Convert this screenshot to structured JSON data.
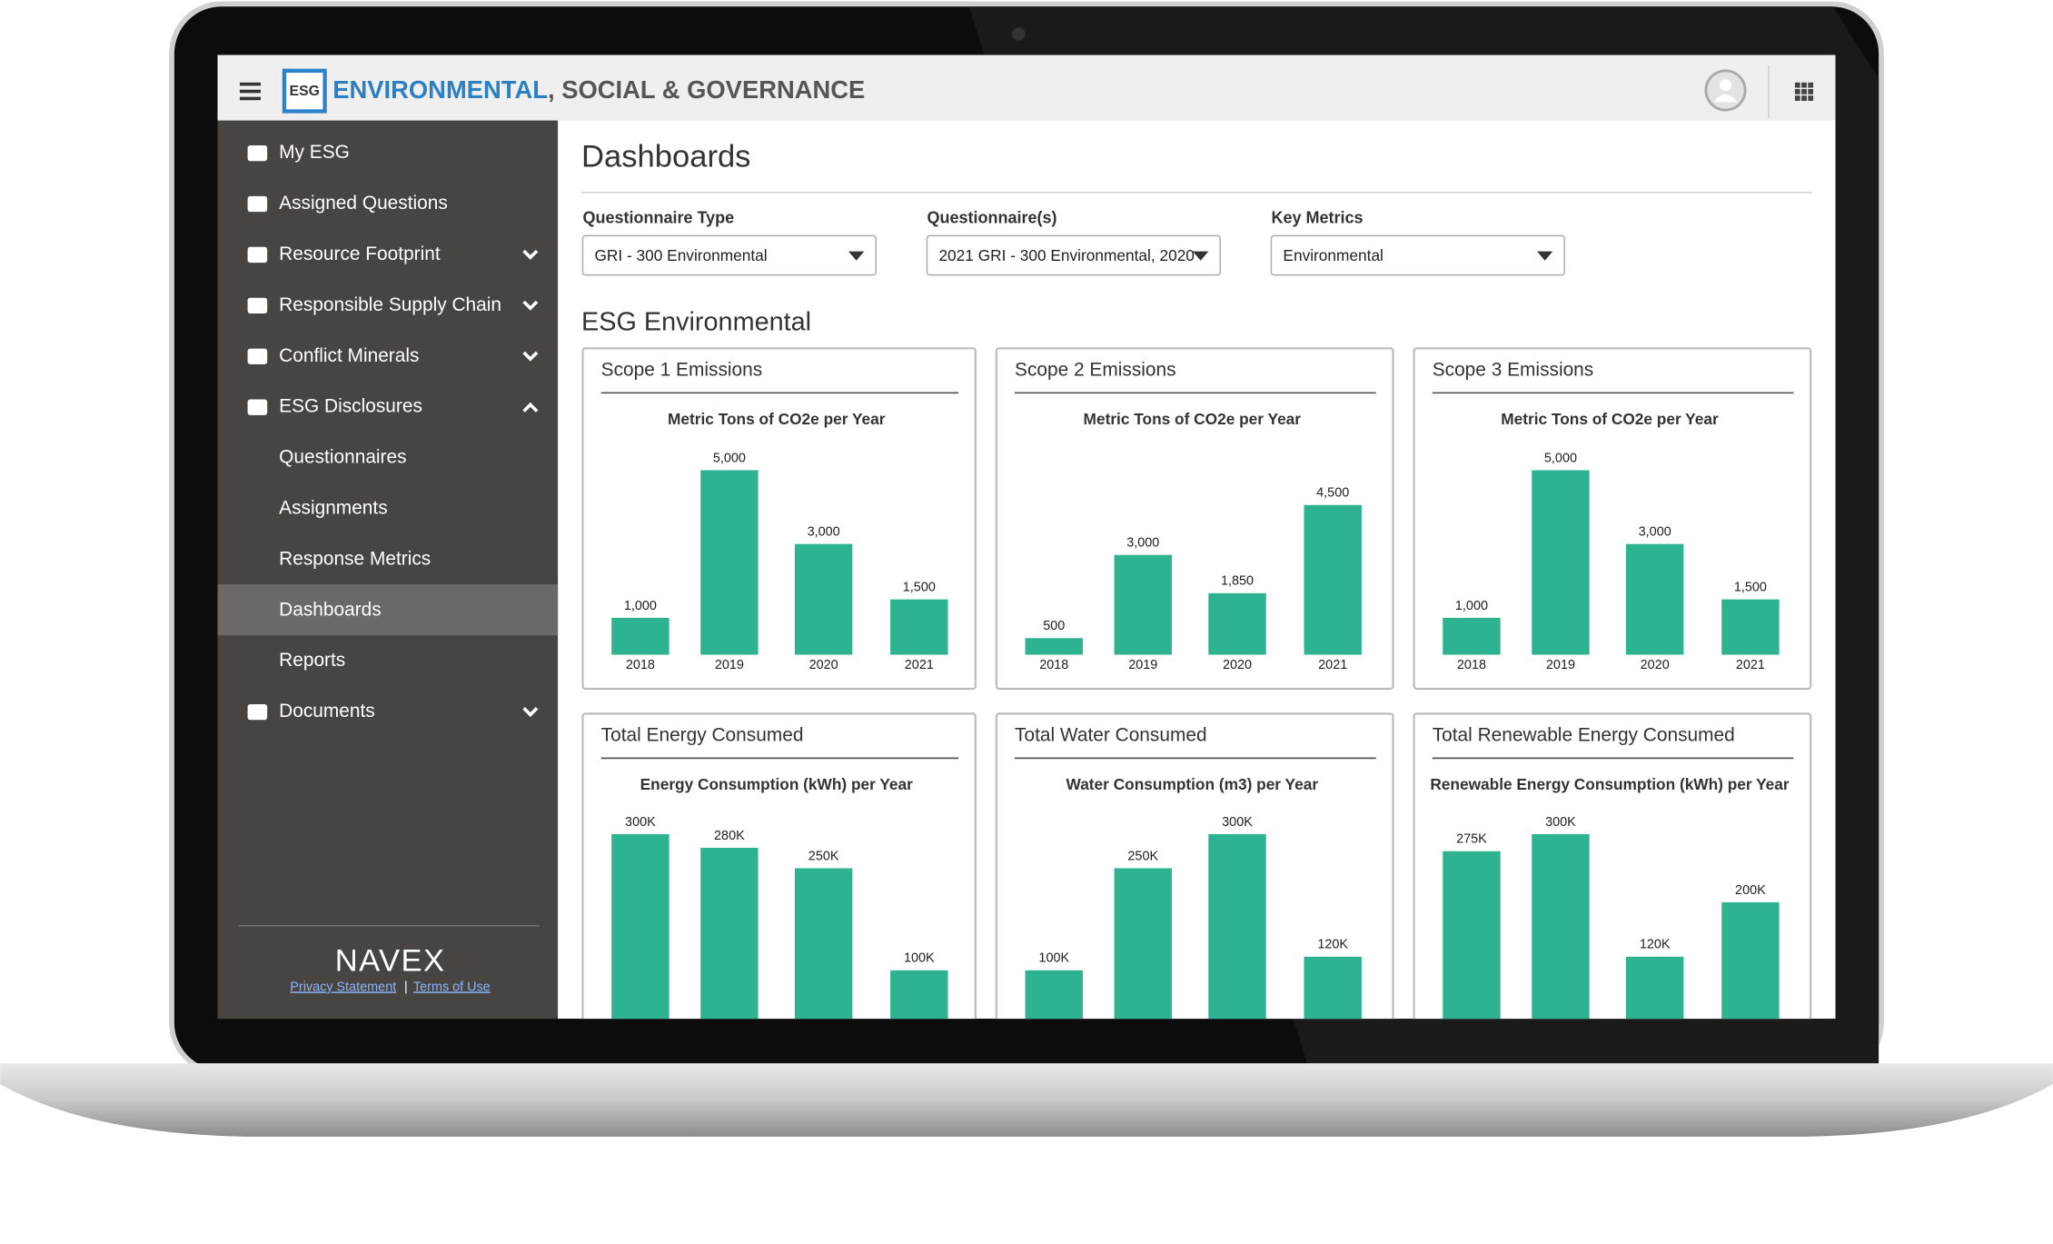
{
  "header": {
    "logo": "ESG",
    "title_main": "ENVIRONMENTAL",
    "title_rest": ", SOCIAL & GOVERNANCE"
  },
  "sidebar": {
    "items": [
      {
        "label": "My ESG"
      },
      {
        "label": "Assigned Questions"
      },
      {
        "label": "Resource Footprint",
        "chevron": "down"
      },
      {
        "label": "Responsible Supply Chain",
        "chevron": "down"
      },
      {
        "label": "Conflict Minerals",
        "chevron": "down"
      },
      {
        "label": "ESG Disclosures",
        "chevron": "up"
      },
      {
        "label": "Questionnaires",
        "sub": true
      },
      {
        "label": "Assignments",
        "sub": true
      },
      {
        "label": "Response Metrics",
        "sub": true
      },
      {
        "label": "Dashboards",
        "sub": true,
        "selected": true
      },
      {
        "label": "Reports",
        "sub": true
      },
      {
        "label": "Documents",
        "chevron": "down"
      }
    ],
    "brand": "NAVEX",
    "links": [
      "Privacy Statement",
      "Terms of Use"
    ],
    "separator": "|"
  },
  "page": {
    "title": "Dashboards",
    "filters": [
      {
        "label": "Questionnaire Type",
        "value": "GRI - 300 Environmental"
      },
      {
        "label": "Questionnaire(s)",
        "value": "2021 GRI - 300 Environmental, 2020"
      },
      {
        "label": "Key Metrics",
        "value": "Environmental"
      }
    ],
    "section": "ESG Environmental"
  },
  "chart_data": [
    {
      "type": "bar",
      "title": "Scope 1 Emissions",
      "subtitle": "Metric Tons of CO2e per Year",
      "categories": [
        "2018",
        "2019",
        "2020",
        "2021"
      ],
      "values": [
        1000,
        5000,
        3000,
        1500
      ],
      "value_labels": [
        "1,000",
        "5,000",
        "3,000",
        "1,500"
      ],
      "color": "#2db38f",
      "ylim": [
        0,
        5500
      ]
    },
    {
      "type": "bar",
      "title": "Scope 2 Emissions",
      "subtitle": "Metric Tons of CO2e per Year",
      "categories": [
        "2018",
        "2019",
        "2020",
        "2021"
      ],
      "values": [
        500,
        3000,
        1850,
        4500
      ],
      "value_labels": [
        "500",
        "3,000",
        "1,850",
        "4,500"
      ],
      "color": "#2db38f",
      "ylim": [
        0,
        6100
      ]
    },
    {
      "type": "bar",
      "title": "Scope 3 Emissions",
      "subtitle": "Metric Tons of CO2e per Year",
      "categories": [
        "2018",
        "2019",
        "2020",
        "2021"
      ],
      "values": [
        1000,
        5000,
        3000,
        1500
      ],
      "value_labels": [
        "1,000",
        "5,000",
        "3,000",
        "1,500"
      ],
      "color": "#2db38f",
      "ylim": [
        0,
        5500
      ]
    },
    {
      "type": "bar",
      "title": "Total Energy Consumed",
      "subtitle": "Energy Consumption (kWh) per Year",
      "values": [
        300000,
        280000,
        250000,
        100000
      ],
      "value_labels": [
        "300K",
        "280K",
        "250K",
        "100K"
      ],
      "color": "#2db38f",
      "ylim": [
        0,
        327000
      ]
    },
    {
      "type": "bar",
      "title": "Total Water Consumed",
      "subtitle": "Water Consumption (m3) per Year",
      "values": [
        100000,
        250000,
        300000,
        120000
      ],
      "value_labels": [
        "100K",
        "250K",
        "300K",
        "120K"
      ],
      "color": "#2db38f",
      "ylim": [
        0,
        327000
      ]
    },
    {
      "type": "bar",
      "title": "Total Renewable Energy Consumed",
      "subtitle": "Renewable Energy Consumption (kWh) per Year",
      "values": [
        275000,
        300000,
        120000,
        200000
      ],
      "value_labels": [
        "275K",
        "300K",
        "120K",
        "200K"
      ],
      "color": "#2db38f",
      "ylim": [
        0,
        327000
      ]
    }
  ]
}
